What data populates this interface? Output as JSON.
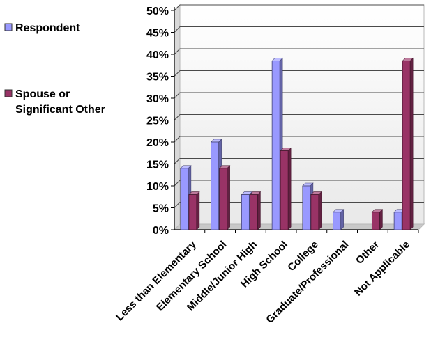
{
  "chart_data": {
    "type": "bar",
    "title": "",
    "xlabel": "",
    "ylabel": "",
    "categories": [
      "Less than Elementary",
      "Elementary School",
      "Middle/Junior High",
      "High School",
      "College",
      "Graduate/Professional",
      "Other",
      "Not Applicable"
    ],
    "series": [
      {
        "name": "Respondent",
        "values": [
          14,
          20,
          8,
          38.5,
          10,
          4,
          0,
          4
        ],
        "color": "#9999ff"
      },
      {
        "name": "Spouse or Significant Other",
        "values": [
          8,
          14,
          8,
          18,
          8,
          0,
          4,
          38.5
        ],
        "color": "#993366"
      }
    ],
    "ylim": [
      0,
      50
    ],
    "yticks": [
      "0%",
      "5%",
      "10%",
      "15%",
      "20%",
      "25%",
      "30%",
      "35%",
      "40%",
      "45%",
      "50%"
    ],
    "grid": true,
    "bar_style": "3d",
    "legend_position": "left",
    "legend": [
      {
        "lines": [
          "Respondent"
        ],
        "color": "#9999ff"
      },
      {
        "lines": [
          "Spouse or",
          "Significant Other"
        ],
        "color": "#993366"
      }
    ]
  }
}
